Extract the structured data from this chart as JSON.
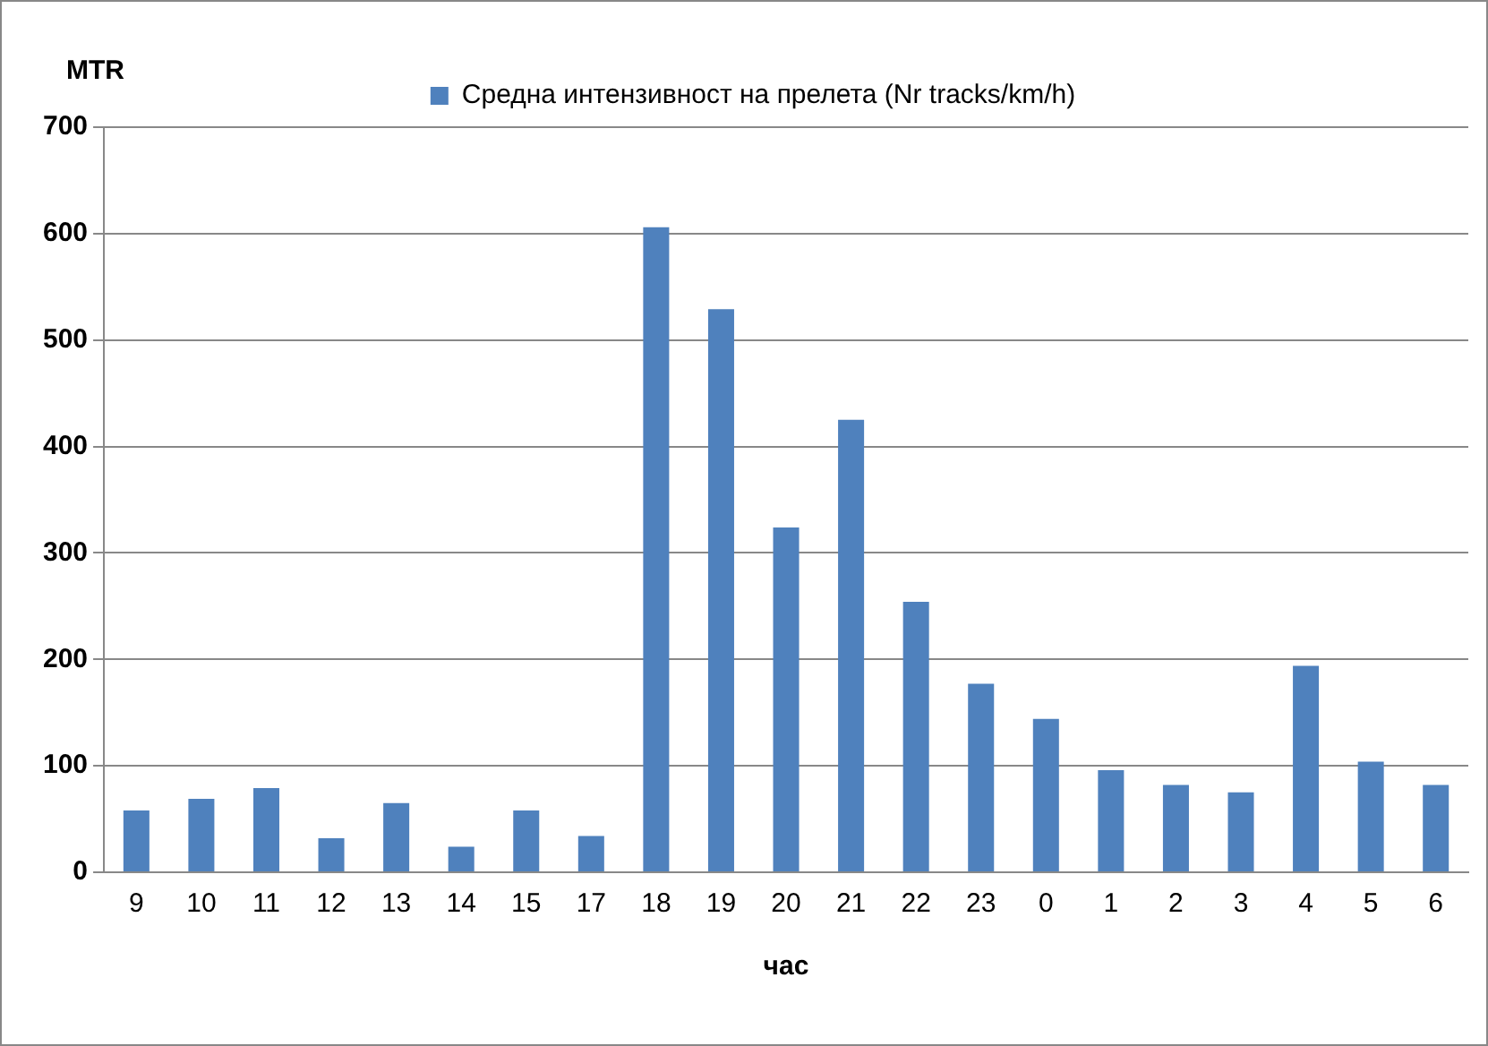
{
  "chart_data": {
    "type": "bar",
    "ylabel": "MTR",
    "xlabel": "час",
    "categories": [
      "9",
      "10",
      "11",
      "12",
      "13",
      "14",
      "15",
      "17",
      "18",
      "19",
      "20",
      "21",
      "22",
      "23",
      "0",
      "1",
      "2",
      "3",
      "4",
      "5",
      "6"
    ],
    "series": [
      {
        "name": "Средна интензивност на прелета (Nr tracks/km/h)",
        "color": "#4f81bd",
        "values": [
          58,
          69,
          79,
          32,
          65,
          24,
          58,
          34,
          606,
          529,
          324,
          425,
          254,
          177,
          144,
          96,
          82,
          75,
          194,
          104,
          82
        ]
      }
    ],
    "ylim": [
      0,
      700
    ],
    "yticks": [
      0,
      100,
      200,
      300,
      400,
      500,
      600,
      700
    ],
    "grid": "y",
    "legend": "top"
  }
}
